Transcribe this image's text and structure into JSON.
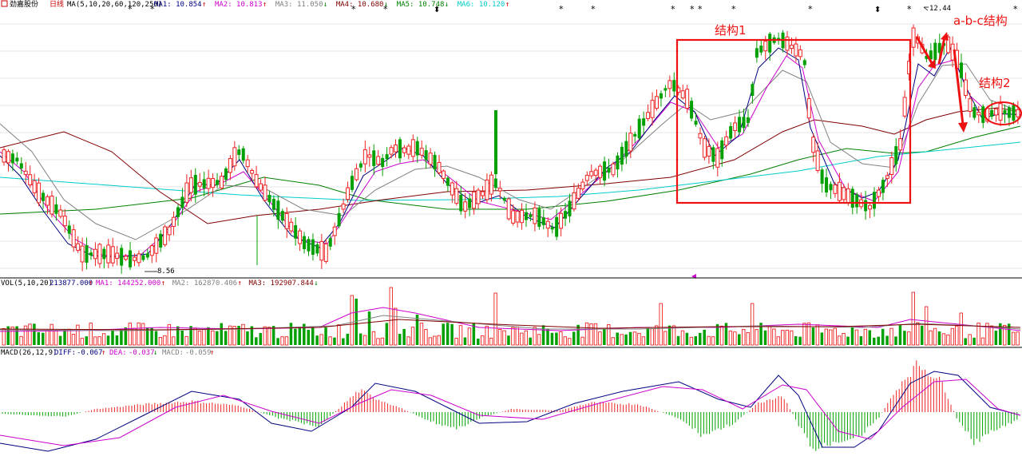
{
  "header": {
    "stock_name": "劲嘉股份",
    "period": "日线",
    "ma_params": "MA(5,10,20,60,120,250)",
    "ma_values": [
      {
        "name": "MA1:",
        "value": "10.854",
        "arrow": "↑",
        "color": "#000080"
      },
      {
        "name": "MA2:",
        "value": "10.813",
        "arrow": "↑",
        "color": "#cc00cc"
      },
      {
        "name": "MA3:",
        "value": "11.050",
        "arrow": "↓",
        "color": "#808080"
      },
      {
        "name": "MA4:",
        "value": "10.680",
        "arrow": "↓",
        "color": "#800000"
      },
      {
        "name": "MA5:",
        "value": "10.748",
        "arrow": "↓",
        "color": "#008000"
      },
      {
        "name": "MA6:",
        "value": "10.120",
        "arrow": "↑",
        "color": "#00cccc"
      }
    ]
  },
  "price_panel": {
    "high_label": "12.44",
    "low_label": "8.56",
    "annotations": {
      "structure1": "结构1",
      "abc": "a-b-c结构",
      "structure2": "结构2"
    }
  },
  "volume_panel": {
    "params": "VOL(5,10,20)",
    "value": "213877.000",
    "value_arrow": "↑",
    "ma_values": [
      {
        "name": "MA1:",
        "value": "144252.000",
        "arrow": "↑",
        "color": "#cc00cc"
      },
      {
        "name": "MA2:",
        "value": "162870.406",
        "arrow": "↑",
        "color": "#808080"
      },
      {
        "name": "MA3:",
        "value": "192907.844",
        "arrow": "↓",
        "color": "#800000"
      }
    ]
  },
  "macd_panel": {
    "params": "MACD(26,12,9)",
    "diff": "-0.067",
    "diff_arrow": "↑",
    "dea": "-0.037",
    "dea_arrow": "↓",
    "macd": "-0.059",
    "macd_arrow": "↑"
  },
  "colors": {
    "up": "#ee2222",
    "down": "#00a000",
    "annotation": "#ee1111"
  }
}
